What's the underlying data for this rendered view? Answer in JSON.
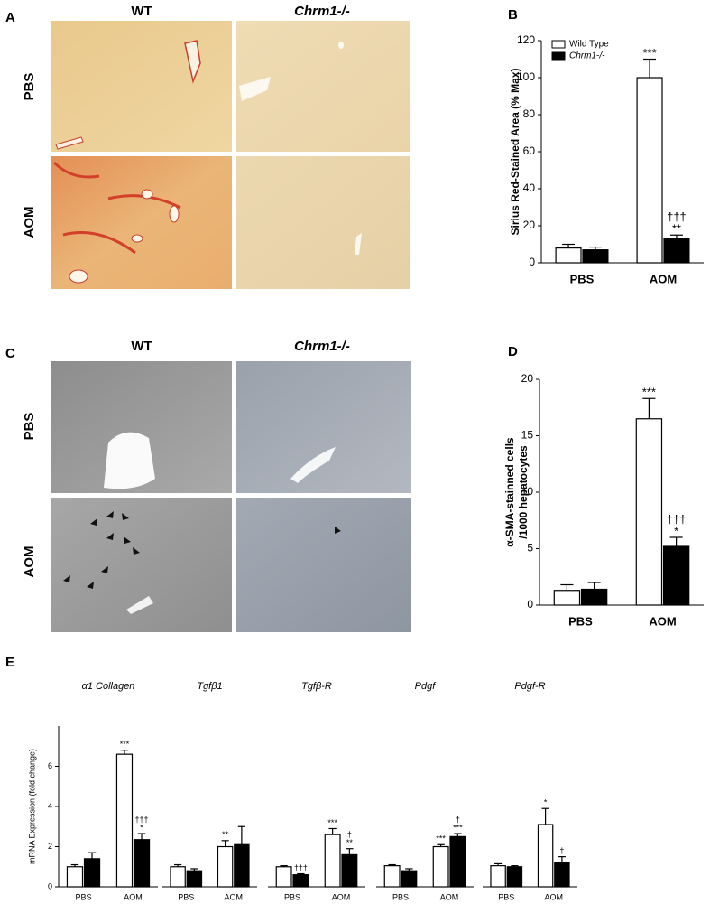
{
  "panels": [
    "A",
    "B",
    "C",
    "D",
    "E"
  ],
  "images": {
    "A": {
      "columns": [
        "WT",
        "Chrm1-/-"
      ],
      "rows": [
        "PBS",
        "AOM"
      ]
    },
    "C": {
      "columns": [
        "WT",
        "Chrm1-/-"
      ],
      "rows": [
        "PBS",
        "AOM"
      ]
    }
  },
  "chart_data": [
    {
      "type": "bar",
      "ylabel": [
        "Sirius Red-Stained Area (% Max)"
      ],
      "categories": [
        "PBS",
        "AOM"
      ],
      "ylim": [
        0,
        120
      ],
      "yticks": [
        0,
        20,
        40,
        60,
        80,
        100,
        120
      ],
      "legend": "upper left",
      "series": [
        {
          "name": "Wild Type",
          "color": "#ffffff",
          "values": [
            8,
            100
          ],
          "errors": [
            2,
            10
          ],
          "marks": [
            null,
            [
              "***"
            ]
          ]
        },
        {
          "name": "Chrm1-/-",
          "color": "#000000",
          "values": [
            7,
            13
          ],
          "errors": [
            1.5,
            2
          ],
          "marks": [
            null,
            [
              "†††",
              "**"
            ]
          ]
        }
      ]
    },
    {
      "type": "bar",
      "ylabel": [
        "α-SMA-stainned cells",
        "/1000 hepatocytes"
      ],
      "categories": [
        "PBS",
        "AOM"
      ],
      "ylim": [
        0,
        20
      ],
      "yticks": [
        0,
        5,
        10,
        15,
        20
      ],
      "series": [
        {
          "color": "#ffffff",
          "values": [
            1.3,
            16.5
          ],
          "errors": [
            0.5,
            1.8
          ],
          "marks": [
            null,
            [
              "***"
            ]
          ]
        },
        {
          "color": "#000000",
          "values": [
            1.4,
            5.2
          ],
          "errors": [
            0.6,
            0.8
          ],
          "marks": [
            null,
            [
              "†††",
              "*"
            ]
          ]
        }
      ]
    },
    {
      "type": "bar",
      "title": "α1 Collagen",
      "ylabel": [
        "mRNA Expression (fold change)"
      ],
      "categories": [
        "PBS",
        "AOM"
      ],
      "ylim": [
        0,
        8
      ],
      "yticks": [
        0,
        2,
        4,
        6
      ],
      "series": [
        {
          "color": "#ffffff",
          "values": [
            1.0,
            6.6
          ],
          "errors": [
            0.1,
            0.2
          ],
          "marks": [
            null,
            [
              "***"
            ]
          ]
        },
        {
          "color": "#000000",
          "values": [
            1.4,
            2.35
          ],
          "errors": [
            0.3,
            0.3
          ],
          "marks": [
            null,
            [
              "†††",
              "*"
            ]
          ]
        }
      ]
    },
    {
      "type": "bar",
      "title": "Tgfβ1",
      "categories": [
        "PBS",
        "AOM"
      ],
      "ylim": [
        0,
        8
      ],
      "series": [
        {
          "color": "#ffffff",
          "values": [
            1.0,
            2.0
          ],
          "errors": [
            0.1,
            0.3
          ],
          "marks": [
            null,
            [
              "**"
            ]
          ]
        },
        {
          "color": "#000000",
          "values": [
            0.8,
            2.1
          ],
          "errors": [
            0.1,
            0.9
          ],
          "marks": [
            null,
            null
          ]
        }
      ]
    },
    {
      "type": "bar",
      "title": "Tgfβ-R",
      "categories": [
        "PBS",
        "AOM"
      ],
      "ylim": [
        0,
        8
      ],
      "series": [
        {
          "color": "#ffffff",
          "values": [
            1.0,
            2.6
          ],
          "errors": [
            0.05,
            0.3
          ],
          "marks": [
            null,
            [
              "***"
            ]
          ]
        },
        {
          "color": "#000000",
          "values": [
            0.6,
            1.6
          ],
          "errors": [
            0.05,
            0.3
          ],
          "marks": [
            [
              "†††"
            ],
            [
              "†",
              "**"
            ]
          ]
        }
      ]
    },
    {
      "type": "bar",
      "title": "Pdgf",
      "categories": [
        "PBS",
        "AOM"
      ],
      "ylim": [
        0,
        8
      ],
      "series": [
        {
          "color": "#ffffff",
          "values": [
            1.05,
            2.0
          ],
          "errors": [
            0.05,
            0.1
          ],
          "marks": [
            null,
            [
              "***"
            ]
          ]
        },
        {
          "color": "#000000",
          "values": [
            0.8,
            2.5
          ],
          "errors": [
            0.1,
            0.15
          ],
          "marks": [
            null,
            [
              "†",
              "***"
            ]
          ]
        }
      ]
    },
    {
      "type": "bar",
      "title": "Pdgf-R",
      "categories": [
        "PBS",
        "AOM"
      ],
      "ylim": [
        0,
        8
      ],
      "series": [
        {
          "color": "#ffffff",
          "values": [
            1.05,
            3.1
          ],
          "errors": [
            0.1,
            0.8
          ],
          "marks": [
            null,
            [
              "*"
            ]
          ]
        },
        {
          "color": "#000000",
          "values": [
            1.0,
            1.2
          ],
          "errors": [
            0.05,
            0.3
          ],
          "marks": [
            null,
            [
              "†"
            ]
          ]
        }
      ]
    }
  ]
}
